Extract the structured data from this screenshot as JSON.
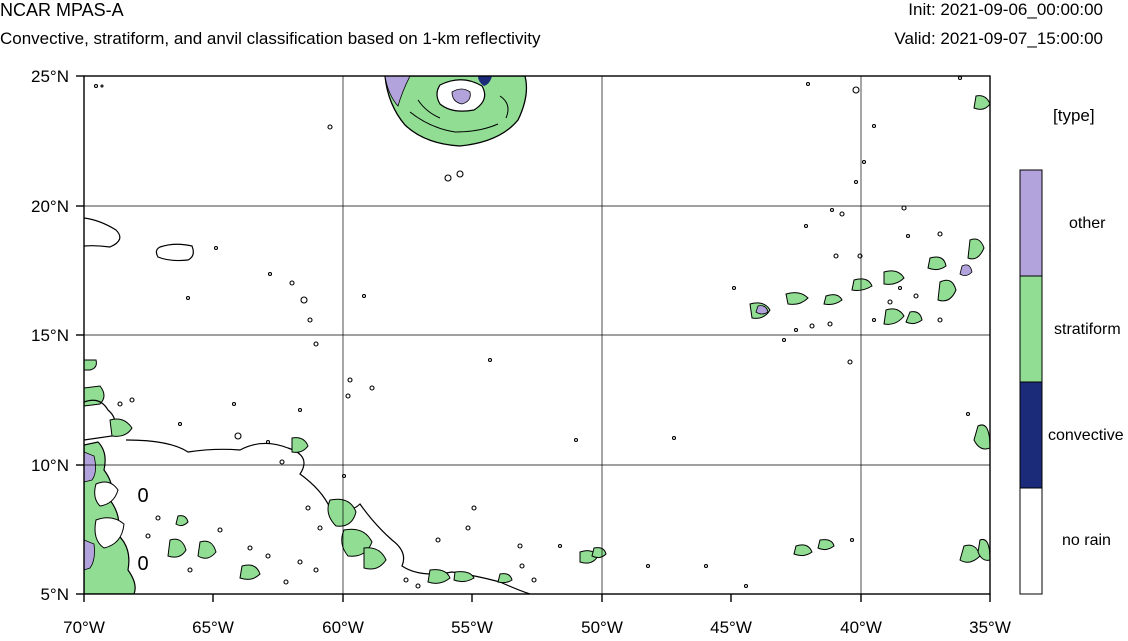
{
  "header": {
    "title": "NCAR MPAS-A",
    "subtitle": "Convective, stratiform, and anvil classification based on 1-km reflectivity",
    "init": "Init: 2021-09-06_00:00:00",
    "valid": "Valid: 2021-09-07_15:00:00"
  },
  "map": {
    "lon_range": [
      -70,
      -35
    ],
    "lat_range": [
      5,
      25
    ],
    "grid": true,
    "x_ticks": [
      "70°W",
      "65°W",
      "60°W",
      "55°W",
      "50°W",
      "45°W",
      "40°W",
      "35°W"
    ],
    "y_ticks": [
      "5°N",
      "10°N",
      "15°N",
      "20°N",
      "25°N"
    ],
    "contour_labels": [
      "0",
      "0"
    ],
    "colors": {
      "other": "#b3a3dc",
      "stratiform": "#90dd93",
      "convective": "#1c2a7a",
      "no_rain": "#ffffff",
      "outline": "#000000"
    }
  },
  "legend": {
    "title": "[type]",
    "items": [
      {
        "label": "other",
        "color": "#b3a3dc"
      },
      {
        "label": "stratiform",
        "color": "#90dd93"
      },
      {
        "label": "convective",
        "color": "#1c2a7a"
      },
      {
        "label": "no rain",
        "color": "#ffffff"
      }
    ]
  }
}
